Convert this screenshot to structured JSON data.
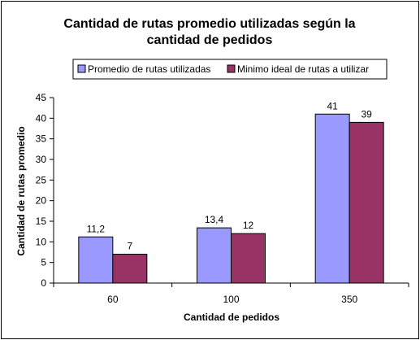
{
  "chart_data": {
    "type": "bar",
    "title_lines": [
      "Cantidad de rutas promedio utilizadas según la",
      "cantidad de pedidos"
    ],
    "xlabel": "Cantidad de pedidos",
    "ylabel": "Cantidad de rutas promedio",
    "categories": [
      "60",
      "100",
      "350"
    ],
    "series": [
      {
        "name": "Promedio de rutas utilizadas",
        "values": [
          11.2,
          13.4,
          41
        ],
        "labels": [
          "11,2",
          "13,4",
          "41"
        ],
        "color": "#9999ff"
      },
      {
        "name": "Minimo ideal de rutas a utilizar",
        "values": [
          7,
          12,
          39
        ],
        "labels": [
          "7",
          "12",
          "39"
        ],
        "color": "#993366"
      }
    ],
    "ylim": [
      0,
      45
    ],
    "yticks": [
      0,
      5,
      10,
      15,
      20,
      25,
      30,
      35,
      40,
      45
    ],
    "grid": false,
    "legend_position": "top"
  }
}
